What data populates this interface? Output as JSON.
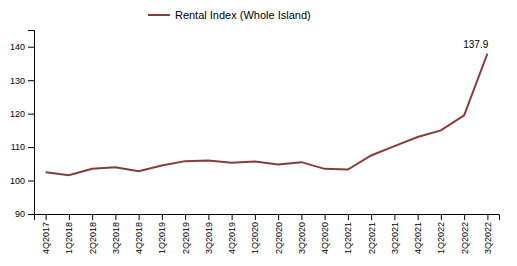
{
  "chart_data": {
    "type": "line",
    "categories": [
      "4Q2017",
      "1Q2018",
      "2Q2018",
      "3Q2018",
      "4Q2018",
      "1Q2019",
      "2Q2019",
      "3Q2019",
      "4Q2019",
      "1Q2020",
      "2Q2020",
      "3Q2020",
      "4Q2020",
      "1Q2021",
      "2Q2021",
      "3Q2021",
      "4Q2021",
      "1Q2022",
      "2Q2022",
      "3Q2022"
    ],
    "series": [
      {
        "name": "Rental Index (Whole Island)",
        "color": "#8B3A3A",
        "values": [
          102.5,
          101.6,
          103.5,
          104.0,
          102.8,
          104.5,
          105.8,
          106.0,
          105.3,
          105.7,
          104.8,
          105.5,
          103.5,
          103.3,
          107.5,
          110.3,
          113.0,
          115.0,
          119.5,
          137.9
        ]
      }
    ],
    "annotations": [
      {
        "text": "137.9",
        "category": "3Q2022",
        "value": 137.9
      }
    ],
    "ylim": [
      90,
      145
    ],
    "yticks": [
      90,
      100,
      110,
      120,
      130,
      140
    ],
    "grid": false,
    "legend": "top"
  }
}
